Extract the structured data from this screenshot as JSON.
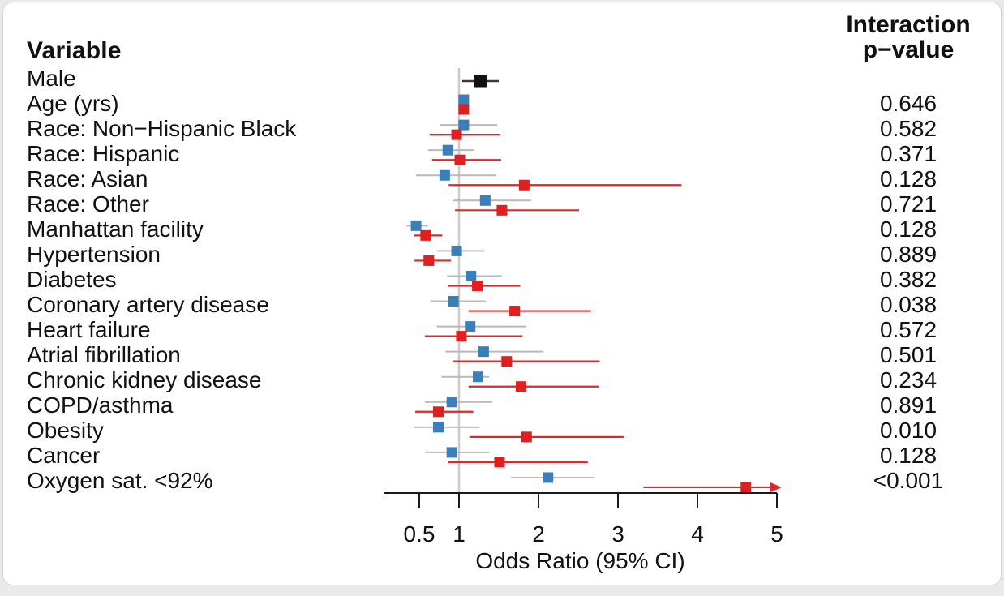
{
  "headers": {
    "variable": "Variable",
    "interaction_line1": "Interaction",
    "interaction_line2": "p−value"
  },
  "chart_data": {
    "type": "forest",
    "title": "",
    "xlabel": "Odds Ratio (95% CI)",
    "x_ticks": [
      0.5,
      1,
      2,
      3,
      4,
      5
    ],
    "x_tick_labels": [
      "0.5",
      "1",
      "2",
      "3",
      "4",
      "5"
    ],
    "x_range": [
      0.45,
      5.1
    ],
    "scale": "linear",
    "reference_line": 1,
    "grid": false,
    "legend": "none",
    "colors": {
      "overall": "#111111",
      "overall_ci": "#3a3a3a",
      "series_blue": "#3b7eb8",
      "series_blue_ci": "#b9b9b9",
      "series_red": "#e02020",
      "series_red_ci": "#d92b2b",
      "reference_line": "#cbcbcb",
      "axis": "#1a1a1a"
    },
    "rows": [
      {
        "label": "Male",
        "p": "",
        "points": [
          {
            "group": "overall",
            "color": "black",
            "or": 1.27,
            "lo": 1.04,
            "hi": 1.5
          }
        ]
      },
      {
        "label": "Age (yrs)",
        "p": "0.646",
        "points": [
          {
            "group": "blue",
            "color": "blue",
            "or": 1.06,
            "lo": 1.02,
            "hi": 1.1
          },
          {
            "group": "red",
            "color": "red",
            "or": 1.06,
            "lo": 1.02,
            "hi": 1.1
          }
        ]
      },
      {
        "label": "Race: Non−Hispanic Black",
        "p": "0.582",
        "points": [
          {
            "group": "blue",
            "color": "blue",
            "or": 1.06,
            "lo": 0.76,
            "hi": 1.48
          },
          {
            "group": "red",
            "color": "red",
            "or": 0.97,
            "lo": 0.63,
            "hi": 1.52
          }
        ]
      },
      {
        "label": "Race: Hispanic",
        "p": "0.371",
        "points": [
          {
            "group": "blue",
            "color": "blue",
            "or": 0.86,
            "lo": 0.61,
            "hi": 1.19
          },
          {
            "group": "red",
            "color": "red",
            "or": 1.01,
            "lo": 0.66,
            "hi": 1.53
          }
        ]
      },
      {
        "label": "Race: Asian",
        "p": "0.128",
        "points": [
          {
            "group": "blue",
            "color": "blue",
            "or": 0.82,
            "lo": 0.46,
            "hi": 1.47
          },
          {
            "group": "red",
            "color": "red",
            "or": 1.82,
            "lo": 0.87,
            "hi": 3.8
          }
        ]
      },
      {
        "label": "Race: Other",
        "p": "0.721",
        "points": [
          {
            "group": "blue",
            "color": "blue",
            "or": 1.33,
            "lo": 0.92,
            "hi": 1.91
          },
          {
            "group": "red",
            "color": "red",
            "or": 1.54,
            "lo": 0.95,
            "hi": 2.51
          }
        ]
      },
      {
        "label": "Manhattan facility",
        "p": "0.128",
        "points": [
          {
            "group": "blue",
            "color": "blue",
            "or": 0.46,
            "lo": 0.34,
            "hi": 0.61
          },
          {
            "group": "red",
            "color": "red",
            "or": 0.58,
            "lo": 0.43,
            "hi": 0.79
          }
        ]
      },
      {
        "label": "Hypertension",
        "p": "0.889",
        "points": [
          {
            "group": "blue",
            "color": "blue",
            "or": 0.97,
            "lo": 0.73,
            "hi": 1.32
          },
          {
            "group": "red",
            "color": "red",
            "or": 0.62,
            "lo": 0.44,
            "hi": 0.9
          }
        ]
      },
      {
        "label": "Diabetes",
        "p": "0.382",
        "points": [
          {
            "group": "blue",
            "color": "blue",
            "or": 1.15,
            "lo": 0.85,
            "hi": 1.54
          },
          {
            "group": "red",
            "color": "red",
            "or": 1.23,
            "lo": 0.86,
            "hi": 1.77
          }
        ]
      },
      {
        "label": "Coronary artery disease",
        "p": "0.038",
        "points": [
          {
            "group": "blue",
            "color": "blue",
            "or": 0.93,
            "lo": 0.64,
            "hi": 1.34
          },
          {
            "group": "red",
            "color": "red",
            "or": 1.7,
            "lo": 1.12,
            "hi": 2.66
          }
        ]
      },
      {
        "label": "Heart failure",
        "p": "0.572",
        "points": [
          {
            "group": "blue",
            "color": "blue",
            "or": 1.14,
            "lo": 0.72,
            "hi": 1.85
          },
          {
            "group": "red",
            "color": "red",
            "or": 1.03,
            "lo": 0.57,
            "hi": 1.8
          }
        ]
      },
      {
        "label": "Atrial fibrillation",
        "p": "0.501",
        "points": [
          {
            "group": "blue",
            "color": "blue",
            "or": 1.31,
            "lo": 0.83,
            "hi": 2.05
          },
          {
            "group": "red",
            "color": "red",
            "or": 1.6,
            "lo": 0.93,
            "hi": 2.77
          }
        ]
      },
      {
        "label": "Chronic kidney disease",
        "p": "0.234",
        "points": [
          {
            "group": "blue",
            "color": "blue",
            "or": 1.24,
            "lo": 0.78,
            "hi": 1.38
          },
          {
            "group": "red",
            "color": "red",
            "or": 1.78,
            "lo": 1.12,
            "hi": 2.76
          }
        ]
      },
      {
        "label": "COPD/asthma",
        "p": "0.891",
        "points": [
          {
            "group": "blue",
            "color": "blue",
            "or": 0.91,
            "lo": 0.57,
            "hi": 1.42
          },
          {
            "group": "red",
            "color": "red",
            "or": 0.74,
            "lo": 0.45,
            "hi": 1.18
          }
        ]
      },
      {
        "label": "Obesity",
        "p": "0.010",
        "points": [
          {
            "group": "blue",
            "color": "blue",
            "or": 0.74,
            "lo": 0.44,
            "hi": 1.26
          },
          {
            "group": "red",
            "color": "red",
            "or": 1.85,
            "lo": 1.13,
            "hi": 3.07
          }
        ]
      },
      {
        "label": "Cancer",
        "p": "0.128",
        "points": [
          {
            "group": "blue",
            "color": "blue",
            "or": 0.91,
            "lo": 0.58,
            "hi": 1.38
          },
          {
            "group": "red",
            "color": "red",
            "or": 1.51,
            "lo": 0.86,
            "hi": 2.62
          }
        ]
      },
      {
        "label": "Oxygen sat. <92%",
        "p": "<0.001",
        "points": [
          {
            "group": "blue",
            "color": "blue",
            "or": 2.12,
            "lo": 1.65,
            "hi": 2.71
          },
          {
            "group": "red",
            "color": "red",
            "or": 4.61,
            "lo": 3.32,
            "hi": 5.1,
            "arrow": true
          }
        ]
      }
    ]
  }
}
